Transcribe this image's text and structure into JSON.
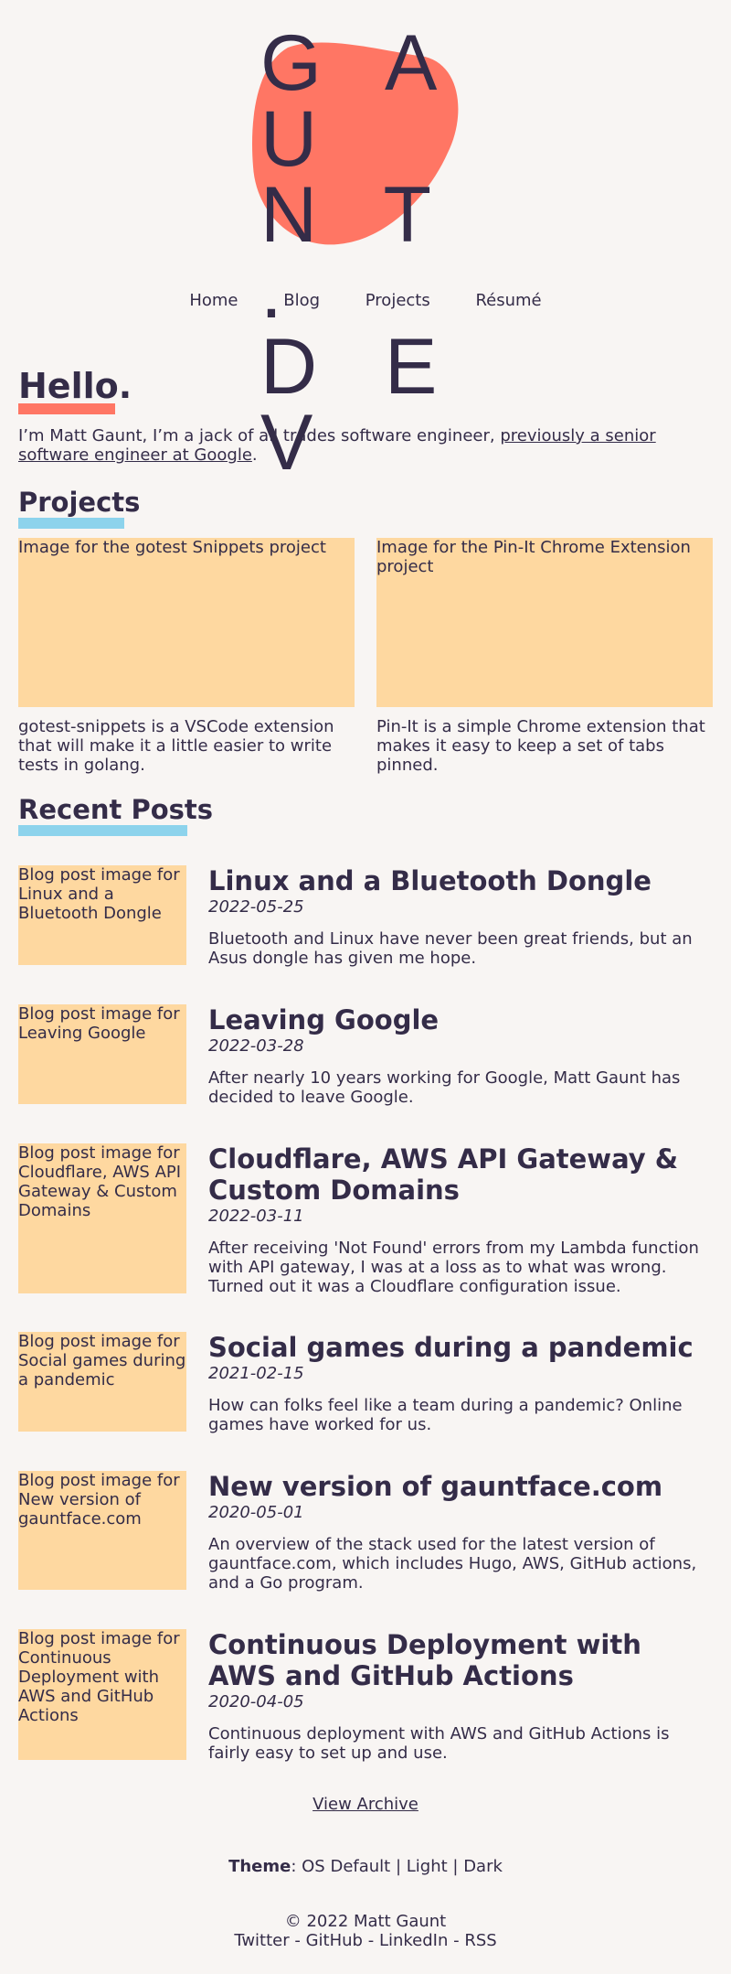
{
  "logo": {
    "line1": "G A U",
    "line2": "N T .",
    "line3": "D E V"
  },
  "nav": [
    "Home",
    "Blog",
    "Projects",
    "Résumé"
  ],
  "hello": {
    "title": "Hello.",
    "intro_text": "I’m Matt Gaunt, I’m a jack of all trades software engineer, ",
    "intro_link": "previously a senior software engineer at Google",
    "intro_end": "."
  },
  "projects": {
    "title": "Projects",
    "items": [
      {
        "image_alt": "Image for the gotest Snippets project",
        "desc": "gotest-snippets is a VSCode extension that will make it a little easier to write tests in golang."
      },
      {
        "image_alt": "Image for the Pin-It Chrome Extension project",
        "desc": "Pin-It is a simple Chrome extension that makes it easy to keep a set of tabs pinned."
      }
    ]
  },
  "recent": {
    "title": "Recent Posts",
    "posts": [
      {
        "image_alt": "Blog post image for Linux and a Bluetooth Dongle",
        "title": "Linux and a Bluetooth Dongle",
        "date": "2022-05-25",
        "desc": "Bluetooth and Linux have never been great friends, but an Asus dongle has given me hope."
      },
      {
        "image_alt": "Blog post image for Leaving Google",
        "title": "Leaving Google",
        "date": "2022-03-28",
        "desc": "After nearly 10 years working for Google, Matt Gaunt has decided to leave Google."
      },
      {
        "image_alt": "Blog post image for Cloudflare, AWS API Gateway & Custom Domains",
        "title": "Cloudflare, AWS API Gateway & Custom Domains",
        "date": "2022-03-11",
        "desc": "After receiving 'Not Found' errors from my Lambda function with API gateway, I was at a loss as to what was wrong. Turned out it was a Cloudflare configuration issue."
      },
      {
        "image_alt": "Blog post image for Social games during a pandemic",
        "title": "Social games during a pandemic",
        "date": "2021-02-15",
        "desc": "How can folks feel like a team during a pandemic? Online games have worked for us."
      },
      {
        "image_alt": "Blog post image for New version of gauntface.com",
        "title": "New version of gauntface.com",
        "date": "2020-05-01",
        "desc": "An overview of the stack used for the latest version of gauntface.com, which includes Hugo, AWS, GitHub actions, and a Go program."
      },
      {
        "image_alt": "Blog post image for Continuous Deployment with AWS and GitHub Actions",
        "title": "Continuous Deployment with AWS and GitHub Actions",
        "date": "2020-04-05",
        "desc": "Continuous deployment with AWS and GitHub Actions is fairly easy to set up and use."
      }
    ]
  },
  "archive_link": "View Archive",
  "theme": {
    "label": "Theme",
    "colon": ": ",
    "options": [
      "OS Default",
      "Light",
      "Dark"
    ],
    "sep": " | "
  },
  "footer": {
    "copyright": "© 2022 Matt Gaunt",
    "links": [
      "Twitter",
      "GitHub",
      "LinkedIn",
      "RSS"
    ],
    "sep": " - "
  },
  "colors": {
    "accent_coral": "#ff7664",
    "accent_blue": "#8dd3ec",
    "image_bg": "#fed8a0",
    "text": "#342c48",
    "bg": "#f8f5f3"
  }
}
